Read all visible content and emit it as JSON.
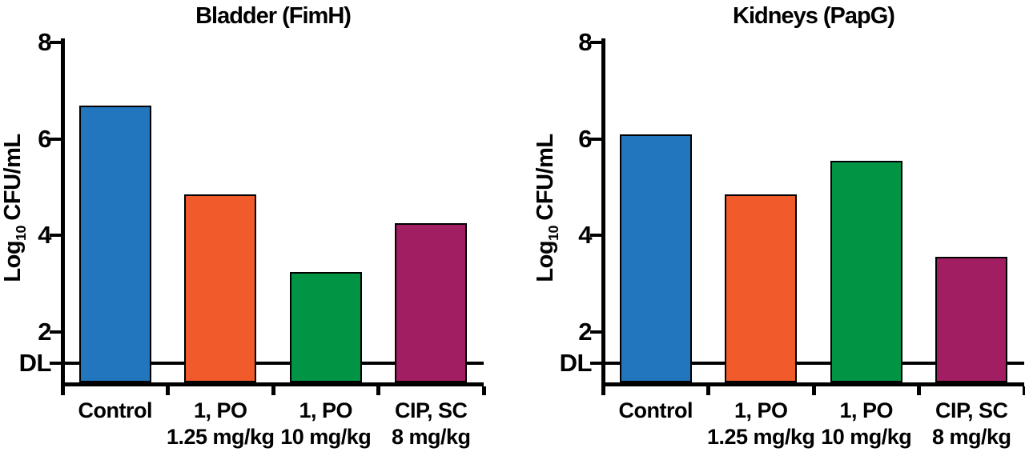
{
  "figure": {
    "background": "#ffffff",
    "axis_color": "#000000",
    "text_color": "#000000"
  },
  "chart_data": [
    {
      "type": "bar",
      "title": "Bladder (FimH)",
      "ylabel": {
        "prefix": "Log",
        "subscript": "10",
        "suffix": "CFU/mL"
      },
      "yticks": [
        8,
        6,
        4,
        2
      ],
      "ylim": [
        1,
        8
      ],
      "detection_limit": {
        "label": "DL",
        "value": 1.35
      },
      "categories": [
        {
          "line1": "Control",
          "line2": ""
        },
        {
          "line1": "1, PO",
          "line2": "1.25 mg/kg"
        },
        {
          "line1": "1, PO",
          "line2": "10 mg/kg"
        },
        {
          "line1": "CIP, SC",
          "line2": "8 mg/kg"
        }
      ],
      "values": [
        6.7,
        4.85,
        3.25,
        4.25
      ],
      "bar_colors": [
        "#2176BE",
        "#F15A2B",
        "#009444",
        "#A21E62"
      ],
      "grid": false,
      "legend": false
    },
    {
      "type": "bar",
      "title": "Kidneys (PapG)",
      "ylabel": {
        "prefix": "Log",
        "subscript": "10",
        "suffix": "CFU/mL"
      },
      "yticks": [
        8,
        6,
        4,
        2
      ],
      "ylim": [
        1,
        8
      ],
      "detection_limit": {
        "label": "DL",
        "value": 1.35
      },
      "categories": [
        {
          "line1": "Control",
          "line2": ""
        },
        {
          "line1": "1, PO",
          "line2": "1.25 mg/kg"
        },
        {
          "line1": "1, PO",
          "line2": "10 mg/kg"
        },
        {
          "line1": "CIP, SC",
          "line2": "8 mg/kg"
        }
      ],
      "values": [
        6.1,
        4.85,
        5.55,
        3.55
      ],
      "bar_colors": [
        "#2176BE",
        "#F15A2B",
        "#009444",
        "#A21E62"
      ],
      "grid": false,
      "legend": false
    }
  ]
}
